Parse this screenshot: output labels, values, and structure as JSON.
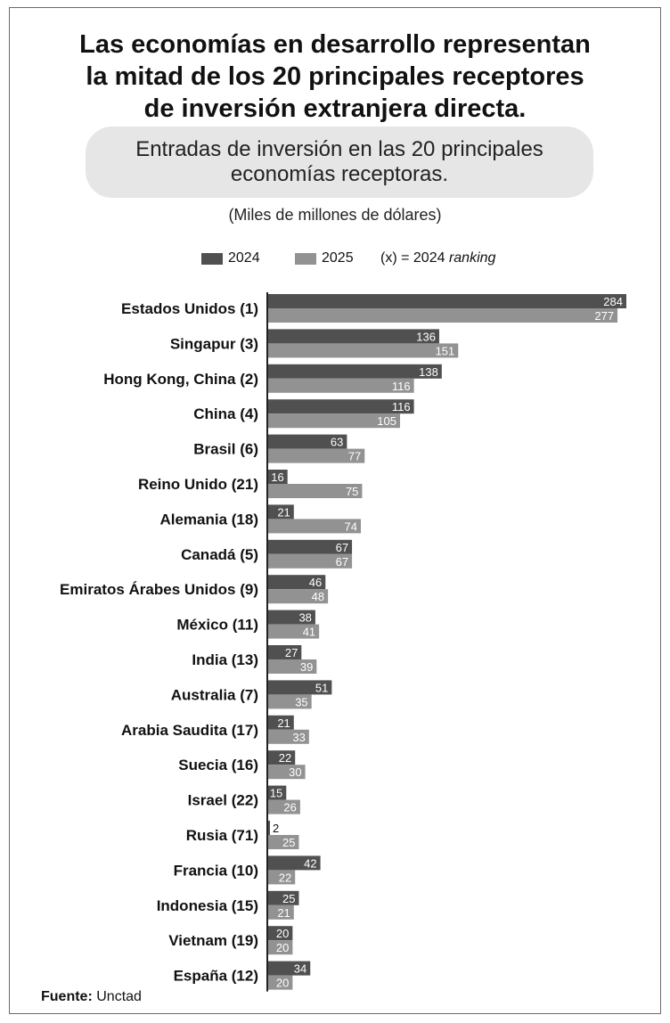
{
  "title_lines": [
    "Las economías en desarrollo representan",
    "la mitad de los 20 principales receptores",
    "de inversión extranjera directa."
  ],
  "subtitle_lines": [
    "Entradas de inversión en las 20 principales",
    "economías receptoras."
  ],
  "units": "(Miles de millones de dólares)",
  "legend": {
    "series_2024": "2024",
    "series_2025": "2025",
    "note_prefix": "(x) = 2024 ",
    "note_italic": "ranking"
  },
  "source": {
    "label": "Fuente:",
    "value": "Unctad"
  },
  "colors": {
    "series_2024": "#505050",
    "series_2025": "#929292",
    "axis": "#222222",
    "subtitle_bg": "#e6e6e6"
  },
  "chart_data": {
    "type": "bar",
    "orientation": "horizontal",
    "categories": [
      "Estados Unidos (1)",
      "Singapur (3)",
      "Hong Kong, China (2)",
      "China (4)",
      "Brasil (6)",
      "Reino Unido (21)",
      "Alemania (18)",
      "Canadá (5)",
      "Emiratos Árabes Unidos (9)",
      "México (11)",
      "India (13)",
      "Australia (7)",
      "Arabia Saudita (17)",
      "Suecia (16)",
      "Israel (22)",
      "Rusia (71)",
      "Francia (10)",
      "Indonesia (15)",
      "Vietnam (19)",
      "España (12)"
    ],
    "series": [
      {
        "name": "2024",
        "values": [
          284,
          136,
          138,
          116,
          63,
          16,
          21,
          67,
          46,
          38,
          27,
          51,
          21,
          22,
          15,
          2,
          42,
          25,
          20,
          34
        ]
      },
      {
        "name": "2025",
        "values": [
          277,
          151,
          116,
          105,
          77,
          75,
          74,
          67,
          48,
          41,
          39,
          35,
          33,
          30,
          26,
          25,
          22,
          21,
          20,
          20
        ]
      }
    ],
    "xlim": [
      0,
      284
    ]
  }
}
